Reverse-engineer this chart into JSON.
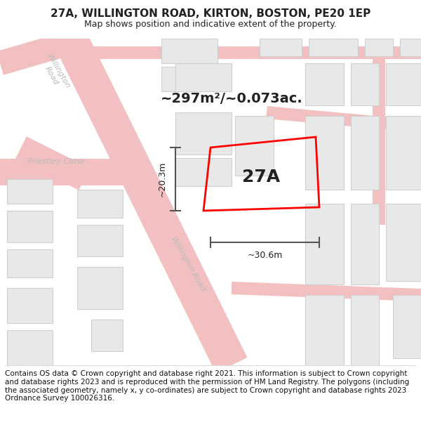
{
  "title_line1": "27A, WILLINGTON ROAD, KIRTON, BOSTON, PE20 1EP",
  "title_line2": "Map shows position and indicative extent of the property.",
  "footer": "Contains OS data © Crown copyright and database right 2021. This information is subject to Crown copyright and database rights 2023 and is reproduced with the permission of HM Land Registry. The polygons (including the associated geometry, namely x, y co-ordinates) are subject to Crown copyright and database rights 2023 Ordnance Survey 100026316.",
  "area_text": "~297m²/~0.073ac.",
  "label_27a": "27A",
  "dim_vertical": "~20.3m",
  "dim_horizontal": "~30.6m",
  "road_label_diag1": "Willington Road",
  "road_label_diag2": "Willington Road",
  "close_label": "Priestley Close",
  "bg_color": "#ffffff",
  "building_fill": "#e8e8e8",
  "building_edge": "#d0d0d0",
  "road_line_color": "#f0b0b0",
  "plot_color": "#ff0000",
  "dim_color": "#555555",
  "text_color": "#222222",
  "road_text_color": "#bbbbbb",
  "title_fontsize": 11,
  "subtitle_fontsize": 9,
  "area_fontsize": 14,
  "label_fontsize": 18,
  "dim_fontsize": 9,
  "road_fontsize": 8,
  "footer_fontsize": 7.5
}
